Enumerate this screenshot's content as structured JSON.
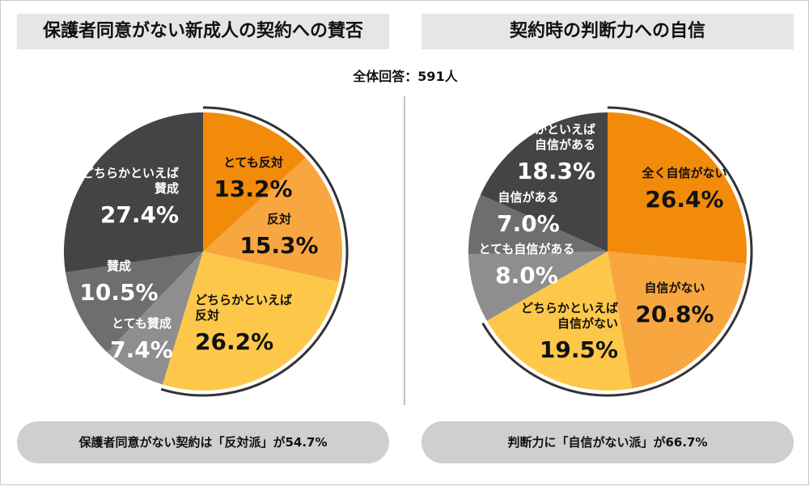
{
  "total_label": "全体回答：591人",
  "colors": {
    "orange": "#F28A0A",
    "light_orange": "#F8A640",
    "yellow": "#FDC84A",
    "dark_gray": "#444444",
    "mid_gray": "#6E6E6E",
    "light_gray": "#8E8E8E",
    "label_text_dark": "#111111",
    "label_text_light": "#FFFFFF"
  },
  "chart_data": [
    {
      "type": "pie",
      "title": "保護者同意がない新成人の契約への賛否",
      "summary": "保護者同意がない契約は「反対派」が54.7%",
      "slices": [
        {
          "label": [
            "とても反対"
          ],
          "value_label": "13.2%",
          "value": 13.2
        },
        {
          "label": [
            "反対"
          ],
          "value_label": "15.3%",
          "value": 15.3
        },
        {
          "label": [
            "どちらかといえば",
            "反対"
          ],
          "value_label": "26.2%",
          "value": 26.2
        },
        {
          "label": [
            "とても賛成"
          ],
          "value_label": "7.4%",
          "value": 7.4
        },
        {
          "label": [
            "賛成"
          ],
          "value_label": "10.5%",
          "value": 10.5
        },
        {
          "label": [
            "どちらかといえば",
            "賛成"
          ],
          "value_label": "27.4%",
          "value": 27.4
        }
      ]
    },
    {
      "type": "pie",
      "title": "契約時の判断力への自信",
      "summary": "判断力に「自信がない派」が66.7%",
      "slices": [
        {
          "label": [
            "全く自信がない"
          ],
          "value_label": "26.4%",
          "value": 26.4
        },
        {
          "label": [
            "自信がない"
          ],
          "value_label": "20.8%",
          "value": 20.8
        },
        {
          "label": [
            "どちらかといえば",
            "自信がない"
          ],
          "value_label": "19.5%",
          "value": 19.5
        },
        {
          "label": [
            "とても自信がある"
          ],
          "value_label": "8.0%",
          "value": 8.0
        },
        {
          "label": [
            "自信がある"
          ],
          "value_label": "7.0%",
          "value": 7.0
        },
        {
          "label": [
            "どちらかといえば",
            "自信がある"
          ],
          "value_label": "18.3%",
          "value": 18.3
        }
      ]
    }
  ]
}
